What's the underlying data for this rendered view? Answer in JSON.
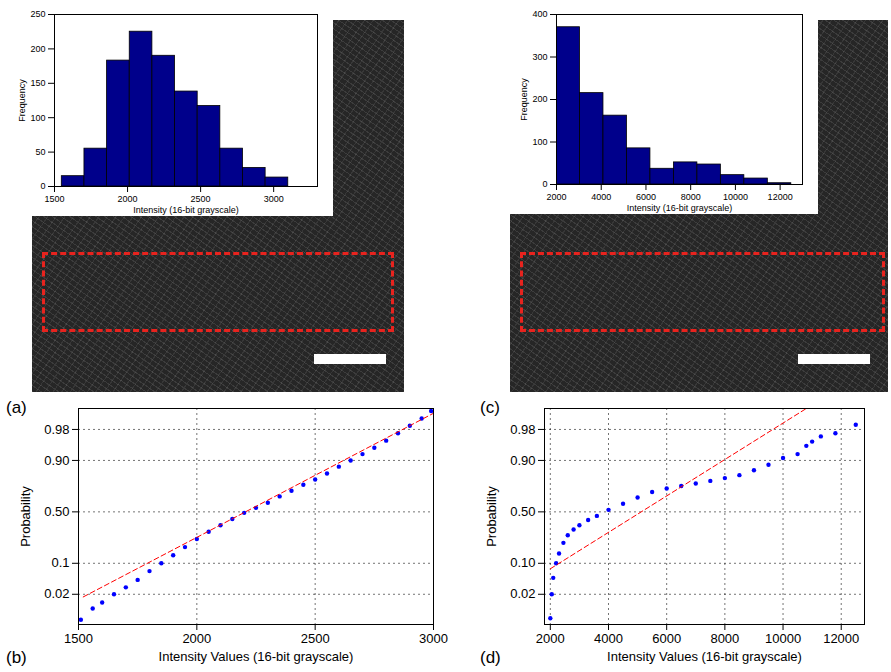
{
  "chart_data": [
    {
      "type": "histogram",
      "title": "(a)",
      "bins": [
        1550,
        1705,
        1860,
        2015,
        2170,
        2325,
        2480,
        2635,
        2790,
        2945,
        3100
      ],
      "values": [
        15,
        55,
        183,
        225,
        190,
        138,
        117,
        55,
        27,
        13
      ],
      "color": "#00008b",
      "xlabel": "Intensity (16-bit grayscale)",
      "ylabel": "Frequency",
      "xlim": [
        1500,
        3300
      ],
      "xticks": [
        1500,
        2000,
        2500,
        3000
      ],
      "ylim": [
        0,
        250
      ],
      "yticks": [
        0,
        50,
        100,
        150,
        200,
        250
      ],
      "grid": false
    },
    {
      "type": "scatter",
      "title": "(b)",
      "xlabel": "Intensity Values (16-bit grayscale)",
      "ylabel": "Probability",
      "xlim": [
        1500,
        3000
      ],
      "xticks": [
        1500,
        2000,
        2500,
        3000
      ],
      "ylim": [
        0.0025,
        0.995
      ],
      "yticks": [
        0.02,
        0.1,
        {
          "value": 0.5,
          "label": "0.50"
        },
        {
          "value": 0.9,
          "label": "0.90"
        },
        0.98
      ],
      "grid": true,
      "series": [
        {
          "type": "scatter",
          "color": "#0000ff",
          "marker": "circle",
          "x": [
            1510,
            1560,
            1600,
            1650,
            1700,
            1750,
            1800,
            1850,
            1900,
            1950,
            2000,
            2050,
            2100,
            2150,
            2200,
            2250,
            2300,
            2350,
            2400,
            2450,
            2500,
            2550,
            2600,
            2650,
            2700,
            2750,
            2800,
            2850,
            2900,
            2950,
            2990
          ],
          "values": [
            0.0036,
            0.008,
            0.012,
            0.02,
            0.03,
            0.045,
            0.07,
            0.1,
            0.14,
            0.19,
            0.25,
            0.31,
            0.37,
            0.43,
            0.49,
            0.54,
            0.59,
            0.65,
            0.7,
            0.75,
            0.79,
            0.83,
            0.87,
            0.9,
            0.925,
            0.945,
            0.962,
            0.975,
            0.984,
            0.99,
            0.994
          ]
        },
        {
          "type": "line",
          "color": "#ff0000",
          "line_style": "dashed",
          "x": [
            1520,
            3000
          ],
          "values": [
            0.017,
            0.993
          ]
        }
      ]
    },
    {
      "type": "histogram",
      "title": "(c)",
      "bins": [
        2000,
        3050,
        4100,
        5150,
        6200,
        7250,
        8300,
        9350,
        10400,
        11450,
        12500
      ],
      "values": [
        370,
        215,
        162,
        85,
        37,
        52,
        47,
        22,
        14,
        3
      ],
      "color": "#00008b",
      "xlabel": "Intensity (16-bit grayscale)",
      "ylabel": "Frequency",
      "xlim": [
        2000,
        13000
      ],
      "xticks": [
        2000,
        4000,
        6000,
        8000,
        10000,
        12000
      ],
      "ylim": [
        0,
        400
      ],
      "yticks": [
        0,
        100,
        200,
        300,
        400
      ],
      "grid": false
    },
    {
      "type": "scatter",
      "title": "(d)",
      "xlabel": "Intensity Values (16-bit grayscale)",
      "ylabel": "Probability",
      "xlim": [
        1800,
        12800
      ],
      "xticks": [
        2000,
        4000,
        6000,
        8000,
        10000,
        12000
      ],
      "ylim": [
        0.0025,
        0.995
      ],
      "yticks": [
        0.02,
        {
          "value": 0.1,
          "label": "0.10"
        },
        {
          "value": 0.5,
          "label": "0.50"
        },
        {
          "value": 0.9,
          "label": "0.90"
        },
        0.98
      ],
      "grid": true,
      "series": [
        {
          "type": "scatter",
          "color": "#0000ff",
          "marker": "circle",
          "x": [
            2000,
            2050,
            2100,
            2200,
            2300,
            2450,
            2600,
            2800,
            3000,
            3300,
            3600,
            4000,
            4500,
            5000,
            5500,
            6000,
            6500,
            7000,
            7500,
            8000,
            8500,
            9000,
            9500,
            10000,
            10500,
            10800,
            11000,
            11300,
            11800,
            12500
          ],
          "values": [
            0.004,
            0.02,
            0.05,
            0.1,
            0.15,
            0.22,
            0.28,
            0.33,
            0.37,
            0.42,
            0.46,
            0.52,
            0.58,
            0.64,
            0.69,
            0.72,
            0.74,
            0.76,
            0.78,
            0.8,
            0.82,
            0.85,
            0.88,
            0.91,
            0.925,
            0.95,
            0.96,
            0.97,
            0.975,
            0.985
          ]
        },
        {
          "type": "line",
          "color": "#ff0000",
          "line_style": "dashed",
          "x": [
            2000,
            10800
          ],
          "values": [
            0.078,
            0.995
          ]
        }
      ]
    }
  ]
}
